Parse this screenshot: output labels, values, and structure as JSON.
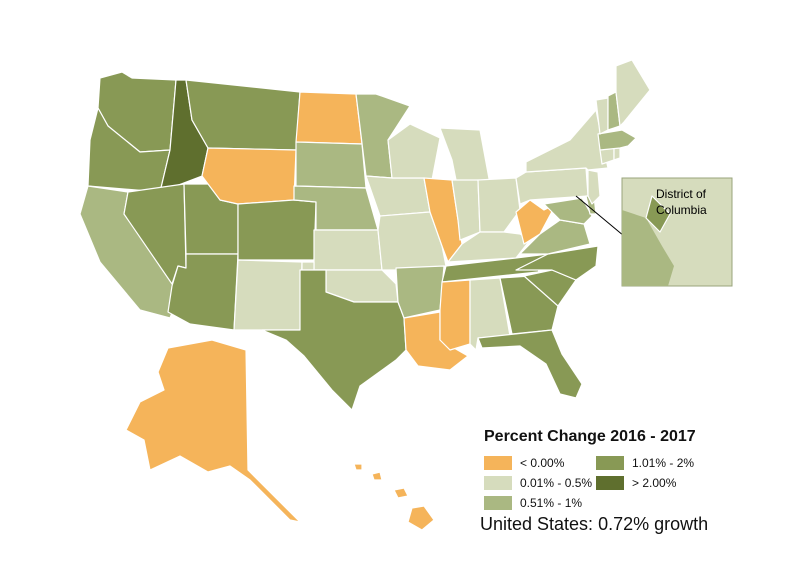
{
  "colors": {
    "negative": "#f5b45a",
    "low": "#d6dcbd",
    "mid": "#aab882",
    "high": "#889955",
    "top": "#5f6f2e"
  },
  "inset": {
    "title_line1": "District of",
    "title_line2": "Columbia"
  },
  "legend": {
    "title": "Percent Change 2016 - 2017",
    "items": [
      {
        "key": "negative",
        "label": "< 0.00%"
      },
      {
        "key": "low",
        "label": "0.01% - 0.5%"
      },
      {
        "key": "mid",
        "label": "0.51% - 1%"
      },
      {
        "key": "high",
        "label": "1.01% - 2%"
      },
      {
        "key": "top",
        "label": "> 2.00%"
      }
    ],
    "us_total": "United States: 0.72% growth"
  },
  "states": {
    "WA": "high",
    "OR": "high",
    "CA": "mid",
    "ID": "top",
    "NV": "high",
    "UT": "high",
    "AZ": "high",
    "MT": "high",
    "WY": "negative",
    "CO": "high",
    "NM": "low",
    "ND": "negative",
    "SD": "mid",
    "NE": "mid",
    "KS": "low",
    "OK": "low",
    "TX": "high",
    "MN": "mid",
    "IA": "low",
    "MO": "low",
    "AR": "mid",
    "LA": "negative",
    "WI": "low",
    "IL": "negative",
    "MI": "low",
    "IN": "low",
    "OH": "low",
    "KY": "low",
    "TN": "high",
    "MS": "negative",
    "AL": "low",
    "GA": "high",
    "FL": "high",
    "SC": "high",
    "NC": "high",
    "VA": "mid",
    "WV": "negative",
    "MD": "mid",
    "DE": "mid",
    "PA": "low",
    "NJ": "low",
    "NY": "low",
    "CT": "low",
    "RI": "low",
    "MA": "mid",
    "VT": "low",
    "NH": "mid",
    "ME": "low",
    "AK": "negative",
    "HI": "negative",
    "DC": "high"
  }
}
